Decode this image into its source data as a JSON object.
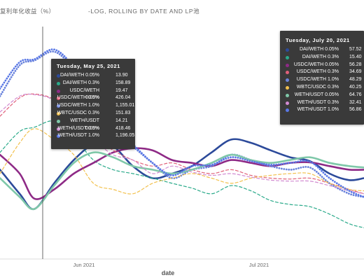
{
  "header": {
    "title": "复利年化收益（%）",
    "subtitle": "-LOG, ROLLING    BY DATE AND LP池"
  },
  "tooltips": {
    "left": {
      "date": "Tuesday, May 25, 2021",
      "rows": [
        {
          "name": "DAI/WETH 0.05%",
          "value": "13.90"
        },
        {
          "name": "DAI/WETH 0.3%",
          "value": "158.89"
        },
        {
          "name": "USDC/WETH 0.05%",
          "value": "19.47"
        },
        {
          "name": "USDC/WETH 0.3%",
          "value": "426.04"
        },
        {
          "name": "USDC/WETH 1.0%",
          "value": "1,155.01"
        },
        {
          "name": "WBTC/USDC 0.3%",
          "value": "151.83"
        },
        {
          "name": "WETH/USDT 0.05%",
          "value": "14.21"
        },
        {
          "name": "WETH/USDT 0.3%",
          "value": "418.46"
        },
        {
          "name": "WETH/USDT 1.0%",
          "value": "1,196.05"
        }
      ]
    },
    "right": {
      "date": "Tuesday, July 20, 2021",
      "rows": [
        {
          "name": "DAI/WETH 0.05%",
          "value": "57.52"
        },
        {
          "name": "DAI/WETH 0.3%",
          "value": "15.40"
        },
        {
          "name": "USDC/WETH 0.05%",
          "value": "56.28"
        },
        {
          "name": "USDC/WETH 0.3%",
          "value": "34.69"
        },
        {
          "name": "USDC/WETH 1.0%",
          "value": "48.29"
        },
        {
          "name": "WBTC/USDC 0.3%",
          "value": "40.25"
        },
        {
          "name": "WETH/USDT 0.05%",
          "value": "64.76"
        },
        {
          "name": "WETH/USDT 0.3%",
          "value": "32.41"
        },
        {
          "name": "WETH/USDT 1.0%",
          "value": "56.86"
        }
      ]
    }
  },
  "chart_data": {
    "type": "line",
    "title": "复利年化收益（%）",
    "subtitle": "-LOG, ROLLING    BY DATE AND LP池",
    "xlabel": "date",
    "ylabel": "",
    "y_scale": "log",
    "x_tick_labels": [
      "Jun 2021",
      "Jul 2021"
    ],
    "xlim": [
      "2021-05-18",
      "2021-07-31"
    ],
    "ylim_log10": [
      0.5,
      3.5
    ],
    "grid": false,
    "hover_line_date": "2021-05-25",
    "x": [
      "2021-05-18",
      "2021-05-22",
      "2021-05-25",
      "2021-05-29",
      "2021-06-02",
      "2021-06-06",
      "2021-06-10",
      "2021-06-14",
      "2021-06-18",
      "2021-06-22",
      "2021-06-26",
      "2021-06-30",
      "2021-07-04",
      "2021-07-08",
      "2021-07-12",
      "2021-07-16",
      "2021-07-20",
      "2021-07-24",
      "2021-07-28",
      "2021-07-31"
    ],
    "series": [
      {
        "name": "DAI/WETH 0.05%",
        "color": "#2c4a9a",
        "dash": "solid",
        "width": 2.6,
        "values": [
          45,
          22,
          14,
          30,
          60,
          95,
          90,
          50,
          35,
          40,
          50,
          75,
          110,
          100,
          80,
          65,
          58,
          40,
          33,
          35
        ]
      },
      {
        "name": "DAI/WETH 0.3%",
        "color": "#2aaa8a",
        "dash": "dash",
        "width": 1.2,
        "values": [
          75,
          140,
          159,
          190,
          120,
          60,
          45,
          40,
          35,
          30,
          26,
          22,
          28,
          24,
          18,
          16,
          15,
          12,
          9,
          8
        ]
      },
      {
        "name": "USDC/WETH 0.05%",
        "color": "#8e2a86",
        "dash": "solid",
        "width": 2.6,
        "values": [
          70,
          40,
          19,
          25,
          40,
          55,
          75,
          85,
          80,
          60,
          55,
          50,
          60,
          55,
          50,
          55,
          56,
          50,
          45,
          45
        ]
      },
      {
        "name": "USDC/WETH 0.3%",
        "color": "#e0607a",
        "dash": "dash",
        "width": 1.2,
        "values": [
          220,
          380,
          426,
          360,
          200,
          120,
          80,
          60,
          50,
          55,
          45,
          40,
          45,
          38,
          35,
          34,
          35,
          30,
          25,
          22
        ]
      },
      {
        "name": "USDC/WETH 1.0%",
        "color": "#6b84dc",
        "dash": "dot",
        "width": 2.8,
        "values": [
          400,
          1000,
          1155,
          1500,
          900,
          400,
          150,
          90,
          55,
          35,
          45,
          50,
          70,
          60,
          50,
          45,
          48,
          30,
          22,
          20
        ]
      },
      {
        "name": "WBTC/USDC 0.3%",
        "color": "#f2c14e",
        "dash": "dash",
        "width": 1.2,
        "values": [
          40,
          100,
          152,
          110,
          70,
          30,
          25,
          22,
          30,
          35,
          40,
          35,
          30,
          35,
          38,
          40,
          40,
          30,
          25,
          24
        ]
      },
      {
        "name": "WETH/USDT 0.05%",
        "color": "#7fc8a9",
        "dash": "solid",
        "width": 2.6,
        "values": [
          35,
          20,
          14,
          28,
          55,
          75,
          65,
          50,
          45,
          40,
          45,
          55,
          70,
          60,
          55,
          60,
          65,
          55,
          50,
          48
        ]
      },
      {
        "name": "WETH/USDT 0.3%",
        "color": "#d28bd1",
        "dash": "dash",
        "width": 1.2,
        "values": [
          250,
          400,
          418,
          350,
          180,
          110,
          70,
          60,
          40,
          50,
          42,
          38,
          40,
          36,
          33,
          32,
          32,
          28,
          24,
          22
        ]
      },
      {
        "name": "WETH/USDT 1.0%",
        "color": "#5a78e6",
        "dash": "dot",
        "width": 2.8,
        "values": [
          500,
          1100,
          1196,
          1600,
          950,
          380,
          160,
          95,
          55,
          38,
          50,
          52,
          65,
          58,
          52,
          55,
          57,
          35,
          24,
          20
        ]
      }
    ]
  }
}
